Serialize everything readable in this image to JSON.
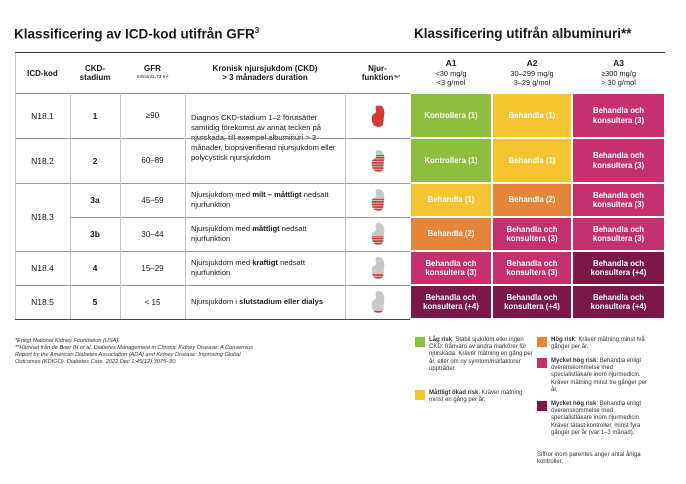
{
  "titles": {
    "left": "Klassificering av ICD-kod utifrån GFR",
    "left_sup": "3",
    "right": "Klassificering utifrån albuminuri**"
  },
  "header": {
    "icd": "ICD-kod",
    "stage": [
      "CKD-",
      "stadium"
    ],
    "gfr": "GFR",
    "gfr_unit": "ml/min/1,73 m²",
    "description": [
      "Kronisk njursjukdom (CKD)",
      "> 3 månaders duration"
    ],
    "function": [
      "Njur-",
      "funktion"
    ],
    "function_unit": "%*",
    "albumin": [
      {
        "name": "A1",
        "lines": [
          "<30 mg/g",
          "<3 g/mol"
        ]
      },
      {
        "name": "A2",
        "lines": [
          "30–299 mg/g",
          "3–29 g/mol"
        ]
      },
      {
        "name": "A3",
        "lines": [
          "≥300 mg/g",
          "> 30 g/mol"
        ]
      }
    ]
  },
  "rows": [
    {
      "icd": "N18.1",
      "stage": "1",
      "gfr": "≥90",
      "description": [
        "Diagnos CKD-stadium 1–2 förutsätter samtidig förekomst av annat tecken på njurskada, till exempel albuminuri > 3 månader, biopsiverifierad njursjukdom eller polycystisk njursjukdom"
      ],
      "cells": [
        {
          "text": "Kontrollera (1)",
          "color": "#8dbe3f"
        },
        {
          "text": "Behandla (1)",
          "color": "#f5c531"
        },
        {
          "text": "Behandla och konsultera (3)",
          "color": "#c5316f"
        }
      ]
    },
    {
      "icd": "N18.2",
      "stage": "2",
      "gfr": "60–89",
      "description": null,
      "cells": [
        {
          "text": "Kontrollera (1)",
          "color": "#8dbe3f"
        },
        {
          "text": "Behandla (1)",
          "color": "#f5c531"
        },
        {
          "text": "Behandla och konsultera (3)",
          "color": "#c5316f"
        }
      ]
    },
    {
      "icd": "N18.3",
      "stage": "3a",
      "gfr": "45–59",
      "description": [
        "Njursjukdom med ",
        "milt – måttligt",
        " nedsatt njurfunktion"
      ],
      "cells": [
        {
          "text": "Behandla (1)",
          "color": "#f5c531"
        },
        {
          "text": "Behandla (2)",
          "color": "#e4853a"
        },
        {
          "text": "Behandla och konsultera (3)",
          "color": "#c5316f"
        }
      ]
    },
    {
      "icd": null,
      "stage": "3b",
      "gfr": "30–44",
      "description": [
        "Njursjukdom med ",
        "måttligt",
        " nedsatt njurfunktion"
      ],
      "cells": [
        {
          "text": "Behandla (2)",
          "color": "#e4853a"
        },
        {
          "text": "Behandla och konsultera (3)",
          "color": "#c5316f"
        },
        {
          "text": "Behandla och konsultera (3)",
          "color": "#c5316f"
        }
      ]
    },
    {
      "icd": "N18.4",
      "stage": "4",
      "gfr": "15–29",
      "description": [
        "Njursjukdom med ",
        "kraftigt",
        " nedsatt njurfunktion"
      ],
      "cells": [
        {
          "text": "Behandla och konsultera (3)",
          "color": "#c5316f"
        },
        {
          "text": "Behandla och konsultera (3)",
          "color": "#c5316f"
        },
        {
          "text": "Behandla och konsultera (+4)",
          "color": "#7b1848"
        }
      ]
    },
    {
      "icd": "N18.5",
      "stage": "5",
      "gfr": "< 15",
      "description": [
        "Njursjukdom i ",
        "slutstadium eller dialys"
      ],
      "cells": [
        {
          "text": "Behandla och konsultera (+4)",
          "color": "#7b1848"
        },
        {
          "text": "Behandla och konsultera (+4)",
          "color": "#7b1848"
        },
        {
          "text": "Behandla och konsultera (+4)",
          "color": "#7b1848"
        }
      ]
    }
  ],
  "footnotes": [
    "*Enligt National Kidney Foundation (USA).",
    "**Hämtad från de Boer IH et al. Diabetes Management in Chronic Kidney Disease: A Consensus Report by the American Diabetes Association (ADA) and Kidney Disease: Improving Global Outcomes (KDIGO). Diabetes Care. 2022 Dec 1;45(12):3075–90."
  ],
  "legend": {
    "items": [
      {
        "color": "#8dbe3f",
        "label": "Låg risk",
        "text": ": Stabil sjukdom eller ingen CKD: frånvaro av andra markörer för njurskada. Kräver mätning en gång per år, eller om ny symtom/riskfaktorer uppträder."
      },
      {
        "color": "#f5c531",
        "label": "Måttligt ökad risk",
        "text": ": Kräver mätning minst en gång per år."
      },
      {
        "color": "#e4853a",
        "label": "Hög risk",
        "text": ": Kräver mätning minst två gånger per år."
      },
      {
        "color": "#c5316f",
        "label": "Mycket hög risk",
        "text": ": Behandla enligt överenskommelse med specialistläkare inom njurmedicin. Kräver mätning minst tre gånger per år."
      },
      {
        "color": "#7b1848",
        "label": "Mycket hög risk",
        "text": ": Behandla enligt överenskommelse med specialistläkare inom njurmedicin. Kräver tätast kontroller, minst fyra gånger per år (var 1–3 månad)."
      }
    ],
    "note": "Siffror inom parentes anger antal årliga kontroller."
  }
}
